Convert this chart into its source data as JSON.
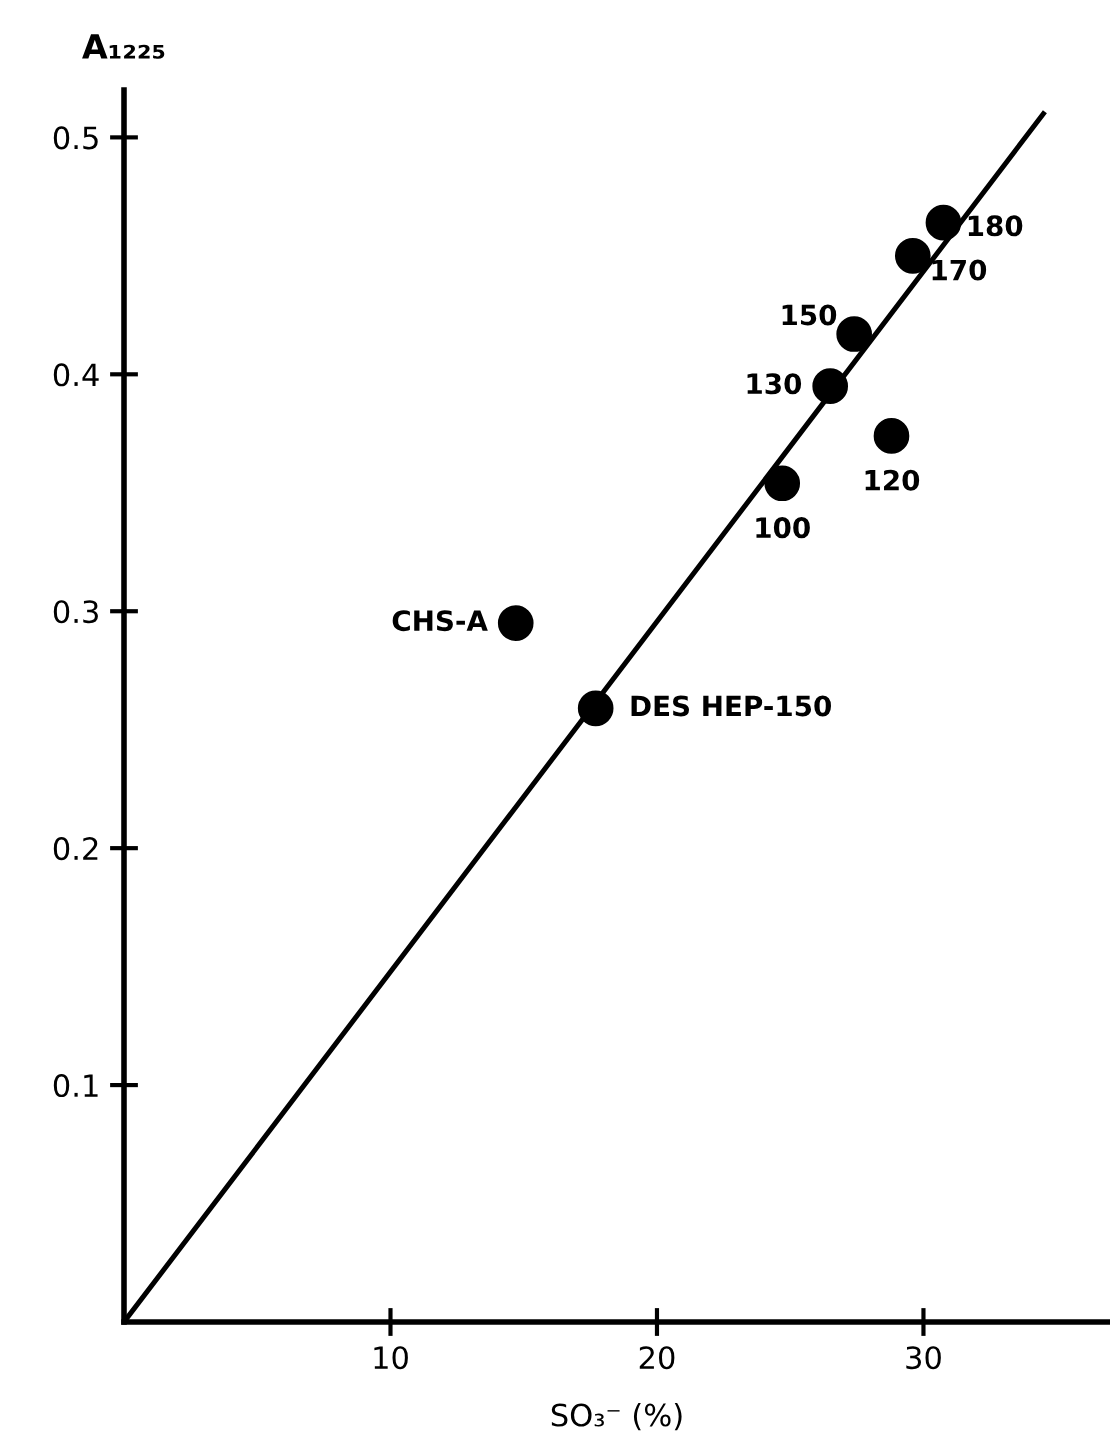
{
  "chart_data": {
    "type": "scatter",
    "ylabel": "A₁₂₂₅",
    "xlabel": "SO₃⁻ (%)",
    "xlim": [
      0,
      37
    ],
    "ylim": [
      0,
      0.52
    ],
    "xticks": [
      10,
      20,
      30
    ],
    "yticks": [
      0.1,
      0.2,
      0.3,
      0.4,
      0.5
    ],
    "grid": false,
    "legend": false,
    "series": [
      {
        "marker": "circle",
        "color": "#000000",
        "x": [
          30.75,
          29.6,
          27.4,
          26.5,
          28.8,
          24.7,
          14.7,
          17.7
        ],
        "values": [
          0.464,
          0.45,
          0.417,
          0.395,
          0.374,
          0.354,
          0.295,
          0.259
        ]
      },
      {
        "type": "line",
        "color": "#000000",
        "x": [
          0,
          34.5
        ],
        "values": [
          0,
          0.51
        ],
        "line_style": "solid"
      }
    ],
    "annotations": [
      {
        "text": "180",
        "x": 30.75,
        "y": 0.464
      },
      {
        "text": "170",
        "x": 29.6,
        "y": 0.45
      },
      {
        "text": "150",
        "x": 27.4,
        "y": 0.417
      },
      {
        "text": "130",
        "x": 26.5,
        "y": 0.395
      },
      {
        "text": "120",
        "x": 28.8,
        "y": 0.374
      },
      {
        "text": "100",
        "x": 24.7,
        "y": 0.354
      },
      {
        "text": "CHS-A",
        "x": 14.7,
        "y": 0.295
      },
      {
        "text": "DES HEP-150",
        "x": 17.7,
        "y": 0.259
      }
    ]
  }
}
